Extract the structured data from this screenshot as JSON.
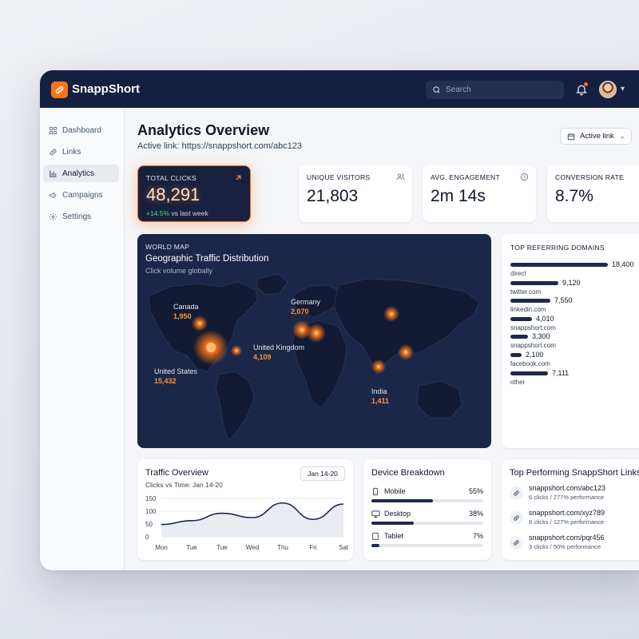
{
  "app": {
    "name": "SnappShort"
  },
  "header": {
    "search_placeholder": "Search"
  },
  "sidebar": {
    "items": [
      {
        "label": "Dashboard",
        "icon": "grid-icon"
      },
      {
        "label": "Links",
        "icon": "link-icon"
      },
      {
        "label": "Analytics",
        "icon": "bar-chart-icon",
        "active": true
      },
      {
        "label": "Campaigns",
        "icon": "megaphone-icon"
      },
      {
        "label": "Settings",
        "icon": "gear-icon"
      }
    ]
  },
  "page": {
    "title": "Analytics Overview",
    "subtitle": "Active link: https://snappshort.com/abc123",
    "link_selector": "Active link"
  },
  "kpis": [
    {
      "label": "TOTAL CLICKS",
      "value": "48,291",
      "delta": "+14.5%",
      "delta_suffix": "vs last week",
      "icon": "arrow-up-right-icon"
    },
    {
      "label": "UNIQUE VISITORS",
      "value": "21,803",
      "icon": "users-icon"
    },
    {
      "label": "AVG. ENGAGEMENT",
      "value": "2m 14s",
      "icon": "clock-icon"
    },
    {
      "label": "CONVERSION RATE",
      "value": "8.7%",
      "icon": "info-icon"
    }
  ],
  "world_map": {
    "kicker": "WORLD MAP",
    "title": "Geographic Traffic Distribution",
    "subtitle": "Click volume globally",
    "locations": [
      {
        "name": "Canada",
        "value": "1,950"
      },
      {
        "name": "Germany",
        "value": "2,070"
      },
      {
        "name": "United Kingdom",
        "value": "4,109"
      },
      {
        "name": "United States",
        "value": "15,432"
      },
      {
        "name": "India",
        "value": "1,411"
      }
    ]
  },
  "referring_domains": {
    "title": "TOP REFERRING DOMAINS",
    "items": [
      {
        "name": "direct",
        "value": "18,400",
        "count": 18400
      },
      {
        "name": "twitter.com",
        "value": "9,120",
        "count": 9120
      },
      {
        "name": "linkedin.com",
        "value": "7,550",
        "count": 7550
      },
      {
        "name": "snappshort.com",
        "value": "4,010",
        "count": 4010
      },
      {
        "name": "snappshort.com",
        "value": "3,300",
        "count": 3300
      },
      {
        "name": "facebook.com",
        "value": "2,100",
        "count": 2100
      },
      {
        "name": "other",
        "value": "7,111",
        "count": 7111
      }
    ]
  },
  "traffic": {
    "title": "Traffic Overview",
    "subtitle": "Clicks vs Time: Jan 14-20",
    "date_range": "Jan 14-20"
  },
  "chart_data": {
    "type": "area",
    "categories": [
      "Mon",
      "Tue",
      "Tue",
      "Wed",
      "Thu",
      "Fri",
      "Sat"
    ],
    "series": [
      {
        "values": [
          48,
          63,
          92,
          75,
          132,
          68,
          128
        ]
      }
    ],
    "yticks": [
      "0",
      "50",
      "100",
      "150"
    ],
    "ylim": [
      0,
      150
    ],
    "title": "",
    "xlabel": "",
    "ylabel": ""
  },
  "devices": {
    "title": "Device Breakdown",
    "items": [
      {
        "name": "Mobile",
        "pct": "55%",
        "fraction": 0.55,
        "icon": "smartphone-icon"
      },
      {
        "name": "Desktop",
        "pct": "38%",
        "fraction": 0.38,
        "icon": "monitor-icon"
      },
      {
        "name": "Tablet",
        "pct": "7%",
        "fraction": 0.07,
        "icon": "tablet-icon"
      }
    ]
  },
  "top_links": {
    "title": "Top Performing SnappShort Links",
    "items": [
      {
        "url": "snappshort.com/abc123",
        "stats": "6 clicks / 277% performance"
      },
      {
        "url": "snappshort.com/xyz789",
        "stats": "8 clicks / 127% performance"
      },
      {
        "url": "snappshort.com/pqr456",
        "stats": "3 clicks / 50% performance"
      }
    ]
  },
  "colors": {
    "navy": "#142040",
    "accent": "#f97316",
    "positive": "#4ade80"
  }
}
